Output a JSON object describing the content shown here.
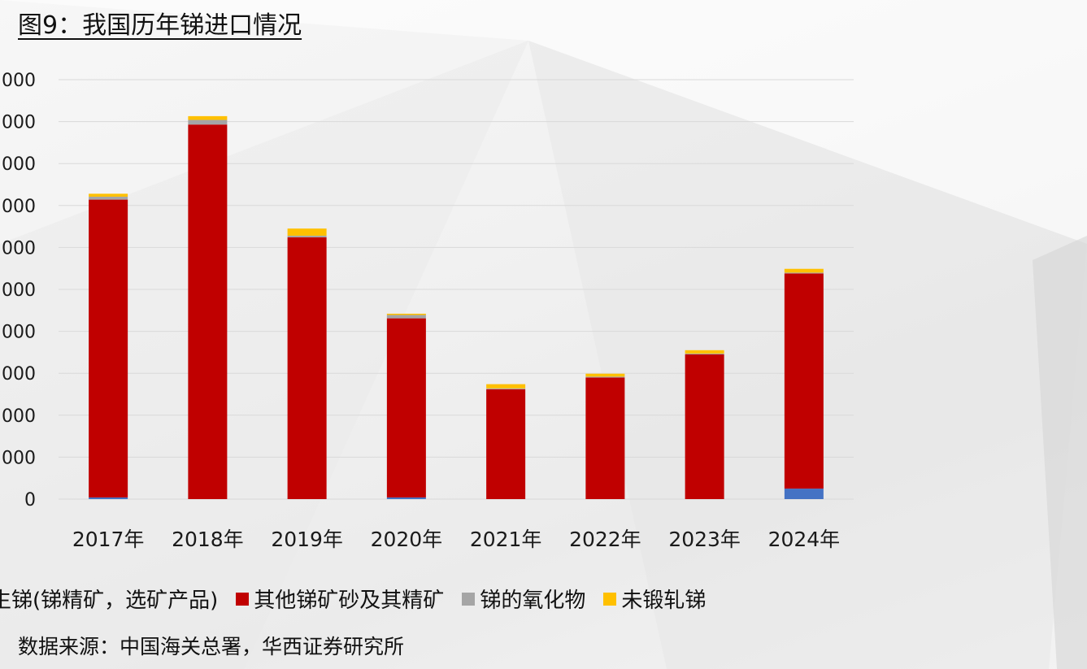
{
  "header": {
    "title": "图9：我国历年锑进口情况"
  },
  "footer": {
    "source": "数据来源：中国海关总署，华西证券研究所"
  },
  "colors": {
    "series": [
      "#4472C4",
      "#C00000",
      "#A5A5A5",
      "#FFC000"
    ],
    "grid": "#d9d9d9",
    "axis_text": "#1a1a1a"
  },
  "chart_data": {
    "type": "bar",
    "stacked": true,
    "title": "",
    "xlabel": "",
    "ylabel": "",
    "categories": [
      "2017年",
      "2018年",
      "2019年",
      "2020年",
      "2021年",
      "2022年",
      "2023年",
      "2024年"
    ],
    "y_tick_labels": [
      "0",
      "000",
      "000",
      "000",
      "000",
      "000",
      "000",
      "000",
      "000",
      "000",
      "000"
    ],
    "ylim": [
      0,
      10
    ],
    "grid": true,
    "legend_position": "bottom",
    "series": [
      {
        "name": "生锑(锑精矿，选矿产品)",
        "values": [
          0.04,
          0.0,
          0.0,
          0.04,
          0.0,
          0.0,
          0.0,
          0.25
        ]
      },
      {
        "name": "其他锑矿砂及其精矿",
        "values": [
          7.1,
          8.93,
          6.24,
          4.27,
          2.62,
          2.9,
          3.45,
          5.13
        ]
      },
      {
        "name": "锑的氧化物",
        "values": [
          0.07,
          0.11,
          0.04,
          0.08,
          0.02,
          0.02,
          0.02,
          0.02
        ]
      },
      {
        "name": "未锻轧锑",
        "values": [
          0.07,
          0.09,
          0.17,
          0.03,
          0.1,
          0.07,
          0.08,
          0.09
        ]
      }
    ]
  }
}
